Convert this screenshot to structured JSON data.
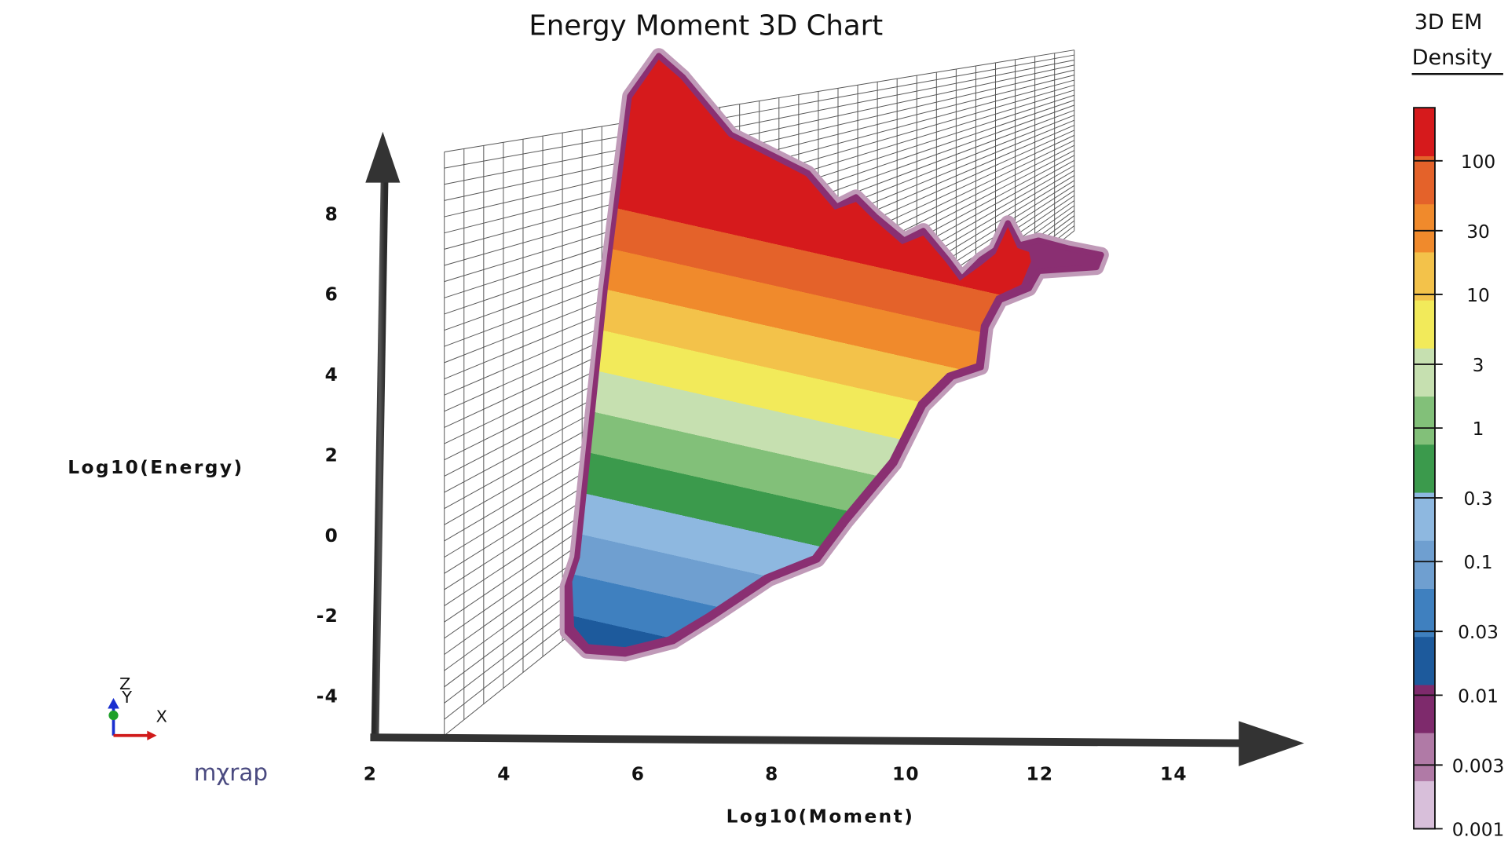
{
  "chart_data": {
    "type": "surface3d",
    "title": "Energy Moment 3D Chart",
    "x_label": "Log10(Moment)",
    "y_label": "Log10(Energy)",
    "xlim": [
      2,
      15
    ],
    "xticks": [
      2,
      4,
      6,
      8,
      10,
      12,
      14
    ],
    "ylim": [
      -5,
      10
    ],
    "yticks": [
      -4,
      -2,
      0,
      2,
      4,
      6,
      8
    ],
    "colorbar": {
      "title": [
        "3D EM",
        "Density"
      ],
      "scale": "log",
      "lim": [
        0.001,
        250
      ],
      "ticks": [
        100,
        30,
        10,
        3,
        1,
        0.3,
        0.1,
        0.03,
        0.01,
        0.003,
        0.001
      ],
      "colors": [
        "#d8bfda",
        "#b07aa6",
        "#7e2a6c",
        "#1d5a9c",
        "#3f80bf",
        "#6f9fd0",
        "#8eb8e0",
        "#3b9a4c",
        "#82c079",
        "#c6e0b0",
        "#f2ea5a",
        "#f3c24a",
        "#f08a2c",
        "#e4622a",
        "#d61a1c"
      ]
    },
    "axes_gizmo": [
      "Z",
      "Y",
      "X"
    ],
    "logo": "mχrap"
  }
}
